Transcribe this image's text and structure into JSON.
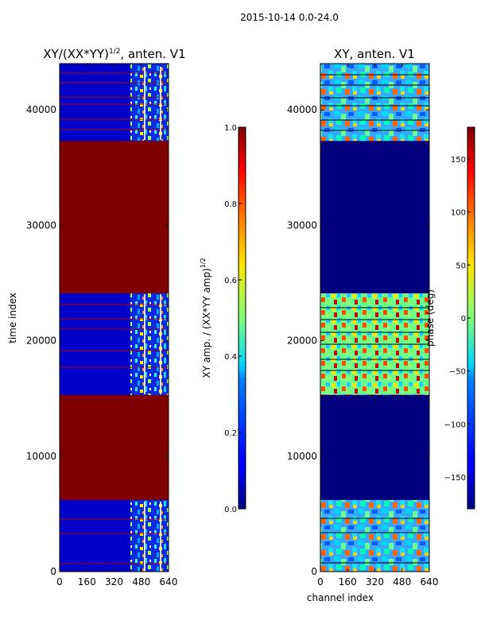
{
  "figure": {
    "suptitle": "2015-10-14 0.0-24.0"
  },
  "chart_data": [
    {
      "type": "heatmap",
      "title_main": "XY/(XX*YY)",
      "title_sup": "1/2",
      "title_rest": ", anten. V1",
      "xlabel": "",
      "ylabel": "time index",
      "xlim": [
        0,
        640
      ],
      "ylim": [
        0,
        44000
      ],
      "xticks": [
        0,
        160,
        320,
        480,
        640
      ],
      "yticks": [
        0,
        10000,
        20000,
        30000,
        40000
      ],
      "colorbar": {
        "label_main": "XY amp. / (XX*YY amp)",
        "label_sup": "1/2",
        "range": [
          0.0,
          1.0
        ],
        "ticks": [
          "0.0",
          "0.2",
          "0.4",
          "0.6",
          "0.8",
          "1.0"
        ]
      },
      "saturated_blocks": [
        [
          6200,
          15300
        ],
        [
          24100,
          37300
        ]
      ],
      "sparse_column_band": [
        420,
        640
      ]
    },
    {
      "type": "heatmap",
      "title": "XY, anten. V1",
      "xlabel": "channel index",
      "ylabel": "",
      "xlim": [
        0,
        640
      ],
      "ylim": [
        0,
        44000
      ],
      "xticks": [
        0,
        160,
        320,
        480,
        640
      ],
      "yticks": [
        0,
        10000,
        20000,
        30000,
        40000
      ],
      "colorbar": {
        "label": "phase (deg)",
        "range": [
          -180,
          180
        ],
        "ticks": [
          "−150",
          "−100",
          "−50",
          "0",
          "50",
          "100",
          "150"
        ]
      },
      "flat_blocks": [
        [
          6200,
          15300
        ],
        [
          24100,
          37300
        ]
      ]
    }
  ]
}
